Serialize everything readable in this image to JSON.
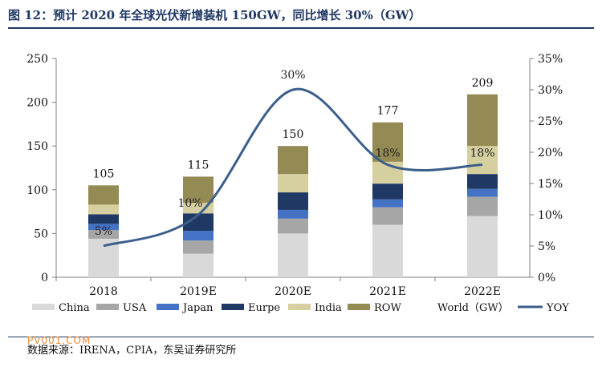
{
  "figure": {
    "title": "图 12：预计 2020 年全球光伏新增装机 150GW，同比增长 30%（GW）",
    "source": "数据来源：IRENA，CPIA，东吴证券研究所",
    "watermark": "PV001.COM"
  },
  "chart_data": {
    "type": "bar",
    "stacked": true,
    "categories": [
      "2018",
      "2019E",
      "2020E",
      "2021E",
      "2022E"
    ],
    "series": [
      {
        "name": "China",
        "color": "#d9d9d9",
        "values": [
          44,
          27,
          50,
          60,
          70
        ]
      },
      {
        "name": "USA",
        "color": "#a6a6a6",
        "values": [
          10,
          15,
          17,
          20,
          22
        ]
      },
      {
        "name": "Japan",
        "color": "#4472c4",
        "values": [
          7,
          11,
          10,
          9,
          9
        ]
      },
      {
        "name": "Eurpe",
        "color": "#1f3864",
        "values": [
          11,
          20,
          20,
          18,
          17
        ]
      },
      {
        "name": "India",
        "color": "#d6cfa0",
        "values": [
          11,
          12,
          21,
          25,
          32
        ]
      },
      {
        "name": "ROW",
        "color": "#948a54",
        "values": [
          22,
          30,
          32,
          45,
          59
        ]
      }
    ],
    "totals": {
      "name": "World（GW）",
      "values": [
        105,
        115,
        150,
        177,
        209
      ]
    },
    "line": {
      "name": "YOY",
      "color": "#3b5f8a",
      "axis": "right",
      "values": [
        5,
        10,
        30,
        18,
        18
      ],
      "labels": [
        "5%",
        "10%",
        "30%",
        "18%",
        "18%"
      ]
    },
    "y_left": {
      "min": 0,
      "max": 250,
      "ticks": [
        "0",
        "50",
        "100",
        "150",
        "200",
        "250"
      ]
    },
    "y_right": {
      "min": 0,
      "max": 35,
      "ticks": [
        "0%",
        "5%",
        "10%",
        "15%",
        "20%",
        "25%",
        "30%",
        "35%"
      ]
    },
    "grid": false,
    "legend_position": "bottom"
  }
}
